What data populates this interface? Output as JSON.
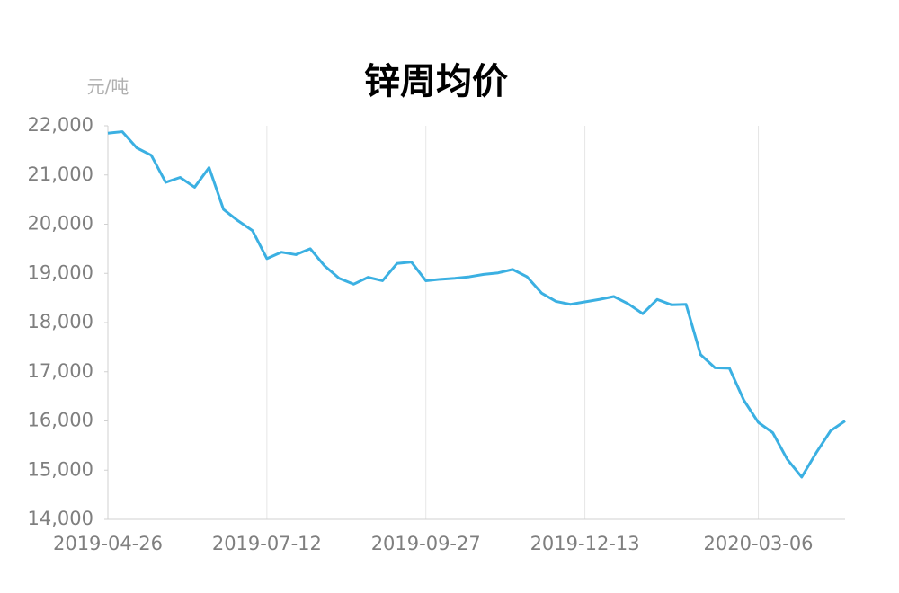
{
  "chart_data": {
    "type": "line",
    "title": "锌周均价",
    "y_unit_label": "元/吨",
    "categories": [
      "2019-04-26",
      null,
      null,
      null,
      null,
      null,
      null,
      null,
      null,
      null,
      null,
      "2019-07-12",
      null,
      null,
      null,
      null,
      null,
      null,
      null,
      null,
      null,
      null,
      "2019-09-27",
      null,
      null,
      null,
      null,
      null,
      null,
      null,
      null,
      null,
      null,
      "2019-12-13",
      null,
      null,
      null,
      null,
      null,
      null,
      null,
      null,
      null,
      null,
      null,
      "2020-03-06",
      null,
      null,
      null,
      null,
      null,
      null
    ],
    "series": [
      {
        "name": "锌周均价",
        "color": "#3bb0e2",
        "values": [
          21850,
          21880,
          21550,
          21400,
          20850,
          20950,
          20750,
          21150,
          20300,
          20070,
          19870,
          19300,
          19430,
          19380,
          19500,
          19150,
          18900,
          18780,
          18920,
          18850,
          19200,
          19230,
          18850,
          18880,
          18900,
          18930,
          18980,
          19010,
          19080,
          18930,
          18600,
          18430,
          18370,
          18420,
          18470,
          18530,
          18380,
          18180,
          18470,
          18360,
          18370,
          17350,
          17080,
          17070,
          16420,
          15970,
          15760,
          15220,
          14860,
          15350,
          15800,
          16000
        ]
      }
    ],
    "ylim": [
      14000,
      22000
    ],
    "yticks": [
      {
        "value": 14000,
        "label": "14,000"
      },
      {
        "value": 15000,
        "label": "15,000"
      },
      {
        "value": 16000,
        "label": "16,000"
      },
      {
        "value": 17000,
        "label": "17,000"
      },
      {
        "value": 18000,
        "label": "18,000"
      },
      {
        "value": 19000,
        "label": "19,000"
      },
      {
        "value": 20000,
        "label": "20,000"
      },
      {
        "value": 21000,
        "label": "21,000"
      },
      {
        "value": 22000,
        "label": "22,000"
      }
    ],
    "grid": "x"
  }
}
